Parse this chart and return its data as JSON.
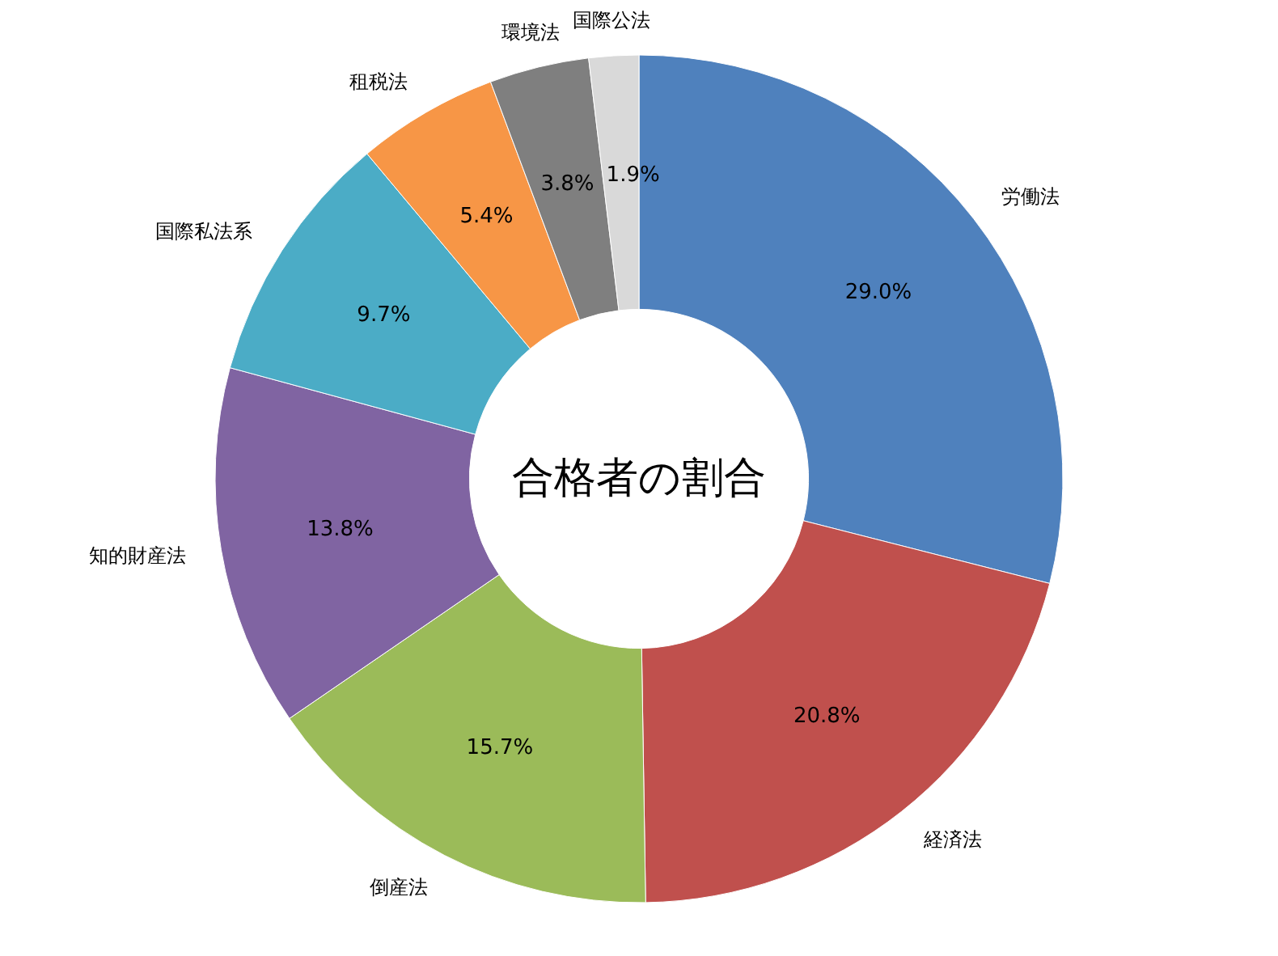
{
  "chart_data": {
    "type": "donut",
    "title": "合格者の割合",
    "categories": [
      "労働法",
      "経済法",
      "倒産法",
      "知的財産法",
      "国際私法系",
      "租税法",
      "環境法",
      "国際公法"
    ],
    "values": [
      29.0,
      20.8,
      15.7,
      13.8,
      9.7,
      5.4,
      3.8,
      1.9
    ],
    "colors": [
      "#4f81bd",
      "#c0504d",
      "#9bbb59",
      "#8064a2",
      "#4bacc6",
      "#f79646",
      "#7f7f7f",
      "#d9d9d9"
    ],
    "value_labels": [
      "29.0%",
      "20.8%",
      "15.7%",
      "13.8%",
      "9.7%",
      "5.4%",
      "3.8%",
      "1.9%"
    ]
  }
}
